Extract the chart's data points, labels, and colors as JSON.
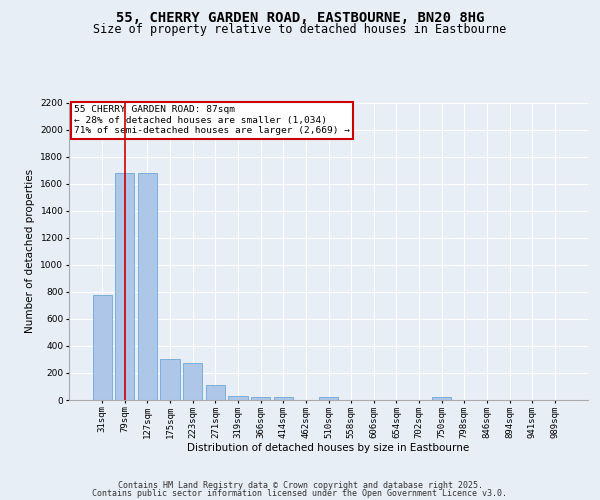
{
  "title_line1": "55, CHERRY GARDEN ROAD, EASTBOURNE, BN20 8HG",
  "title_line2": "Size of property relative to detached houses in Eastbourne",
  "xlabel": "Distribution of detached houses by size in Eastbourne",
  "ylabel": "Number of detached properties",
  "categories": [
    "31sqm",
    "79sqm",
    "127sqm",
    "175sqm",
    "223sqm",
    "271sqm",
    "319sqm",
    "366sqm",
    "414sqm",
    "462sqm",
    "510sqm",
    "558sqm",
    "606sqm",
    "654sqm",
    "702sqm",
    "750sqm",
    "798sqm",
    "846sqm",
    "894sqm",
    "941sqm",
    "989sqm"
  ],
  "values": [
    780,
    1680,
    1680,
    300,
    270,
    110,
    30,
    25,
    25,
    0,
    20,
    0,
    0,
    0,
    0,
    20,
    0,
    0,
    0,
    0,
    0
  ],
  "bar_color": "#aec6e8",
  "bar_edge_color": "#5a9fd4",
  "vline_x": 1,
  "vline_color": "#cc0000",
  "annotation_text": "55 CHERRY GARDEN ROAD: 87sqm\n← 28% of detached houses are smaller (1,034)\n71% of semi-detached houses are larger (2,669) →",
  "annotation_box_color": "#cc0000",
  "annotation_text_color": "#000000",
  "ylim": [
    0,
    2200
  ],
  "yticks": [
    0,
    200,
    400,
    600,
    800,
    1000,
    1200,
    1400,
    1600,
    1800,
    2000,
    2200
  ],
  "background_color": "#e8eef5",
  "plot_background": "#e8eef5",
  "grid_color": "#ffffff",
  "footer_line1": "Contains HM Land Registry data © Crown copyright and database right 2025.",
  "footer_line2": "Contains public sector information licensed under the Open Government Licence v3.0.",
  "title_fontsize": 10,
  "subtitle_fontsize": 8.5,
  "axis_label_fontsize": 7.5,
  "tick_fontsize": 6.5,
  "annotation_fontsize": 6.8,
  "footer_fontsize": 6.0
}
